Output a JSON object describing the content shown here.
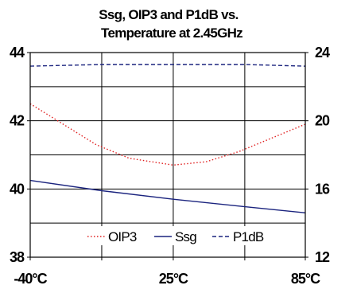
{
  "chart_data": {
    "type": "line",
    "title_lines": [
      "Ssg, OIP3 and P1dB vs.",
      "Temperature at 2.45GHz"
    ],
    "x": [
      -40,
      -7.5,
      25,
      57.5,
      85
    ],
    "x_tick_labels": [
      "-40°C",
      "25°C",
      "85°C"
    ],
    "x_tick_values": [
      -40,
      25,
      85
    ],
    "xlim": [
      -40,
      85
    ],
    "left_axis": {
      "ylim": [
        38,
        44
      ],
      "ticks": [
        "38",
        "40",
        "42",
        "44"
      ],
      "tick_values": [
        38,
        40,
        42,
        44
      ]
    },
    "right_axis": {
      "ylim": [
        12,
        24
      ],
      "ticks": [
        "12",
        "16",
        "20",
        "24"
      ],
      "tick_values": [
        12,
        16,
        20,
        24
      ]
    },
    "grid": true,
    "legend_position": "bottom-center",
    "series": [
      {
        "name": "OIP3",
        "axis": "left",
        "color": "#e02020",
        "style": "dotted",
        "points": [
          [
            -40,
            42.5
          ],
          [
            -25,
            41.9
          ],
          [
            -10,
            41.3
          ],
          [
            5,
            40.9
          ],
          [
            25,
            40.7
          ],
          [
            40,
            40.8
          ],
          [
            55,
            41.1
          ],
          [
            70,
            41.5
          ],
          [
            85,
            41.9
          ]
        ]
      },
      {
        "name": "Ssg",
        "axis": "left",
        "color": "#1a237e",
        "style": "solid",
        "points": [
          [
            -40,
            40.25
          ],
          [
            -7.5,
            39.95
          ],
          [
            25,
            39.7
          ],
          [
            57.5,
            39.48
          ],
          [
            85,
            39.3
          ]
        ]
      },
      {
        "name": "P1dB",
        "axis": "right",
        "color": "#1a237e",
        "style": "dashed",
        "points": [
          [
            -40,
            23.2
          ],
          [
            -7.5,
            23.3
          ],
          [
            25,
            23.3
          ],
          [
            57.5,
            23.3
          ],
          [
            85,
            23.2
          ]
        ]
      }
    ]
  }
}
